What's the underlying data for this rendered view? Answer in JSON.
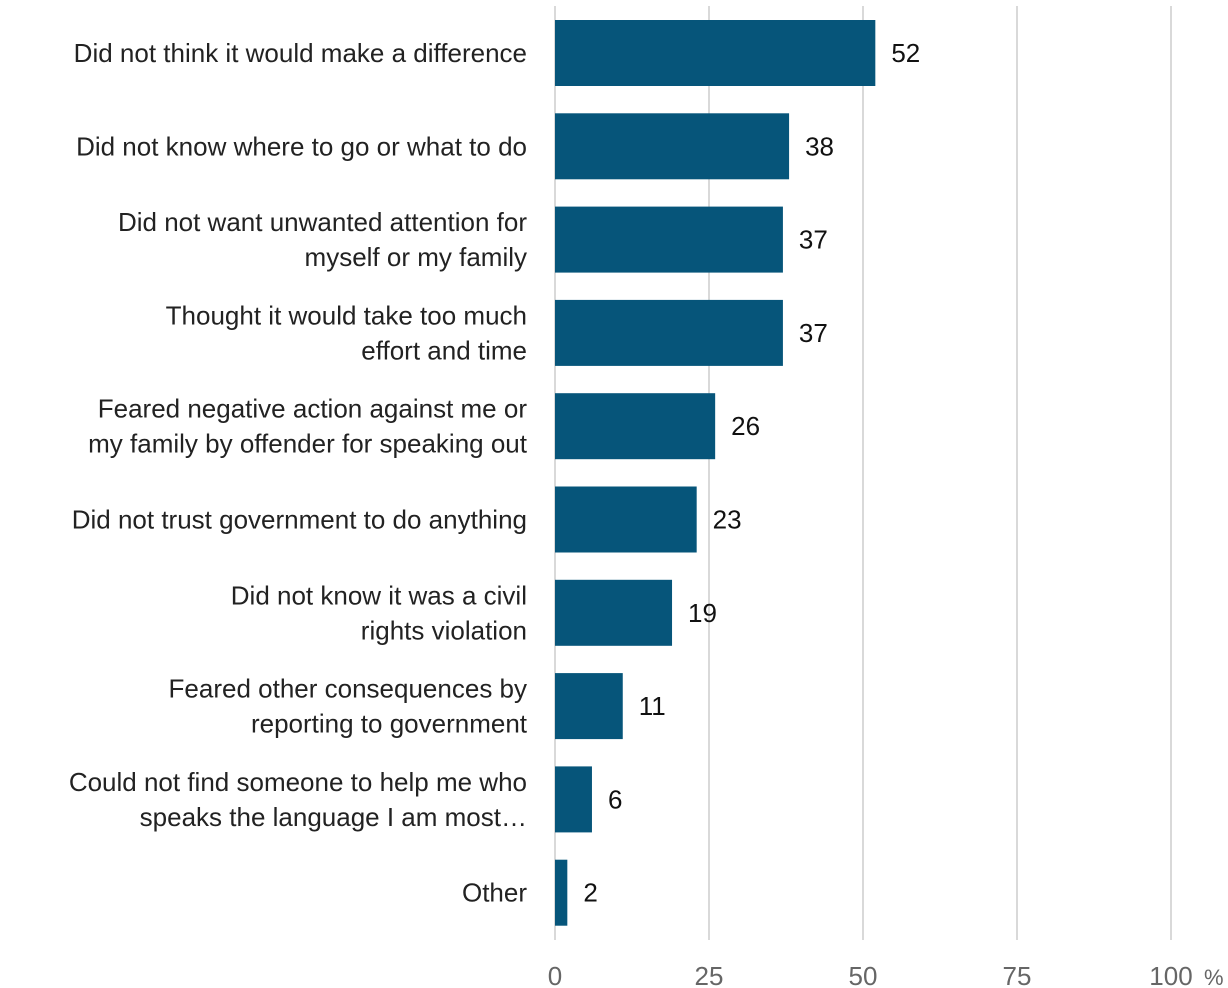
{
  "chart_data": {
    "type": "bar",
    "orientation": "horizontal",
    "categories": [
      [
        "Did not think it would make a difference"
      ],
      [
        "Did not know where to go or what to do"
      ],
      [
        "Did not want unwanted attention for",
        "myself or my family"
      ],
      [
        "Thought it would take too much",
        "effort and time"
      ],
      [
        "Feared negative action against me or",
        "my family by offender for speaking out"
      ],
      [
        "Did not trust government to do anything"
      ],
      [
        "Did not know it was a civil",
        "rights violation"
      ],
      [
        "Feared other consequences by",
        "reporting to government"
      ],
      [
        "Could not find someone to help me who",
        "speaks the language I am most…"
      ],
      [
        "Other"
      ]
    ],
    "values": [
      52,
      38,
      37,
      37,
      26,
      23,
      19,
      11,
      6,
      2
    ],
    "value_labels": [
      "52",
      "38",
      "37",
      "37",
      "26",
      "23",
      "19",
      "11",
      "6",
      "2"
    ],
    "xlim": [
      0,
      100
    ],
    "xticks": [
      0,
      25,
      50,
      75,
      100
    ],
    "xtick_labels": [
      "0",
      "25",
      "50",
      "75",
      "100"
    ],
    "x_unit": "%",
    "grid": true,
    "legend": "none",
    "bar_color": "#06557a",
    "grid_color": "#d9d9d9"
  }
}
